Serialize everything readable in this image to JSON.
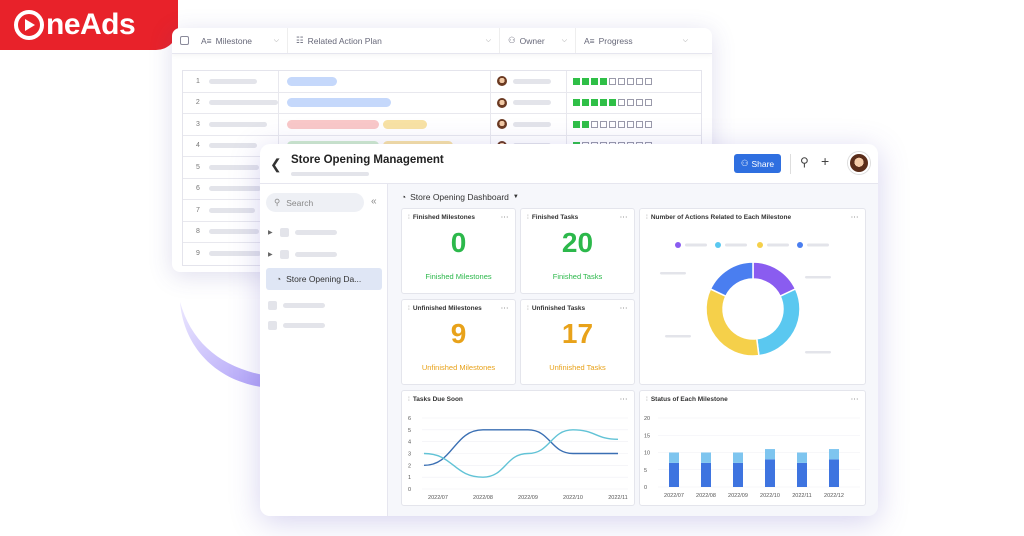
{
  "brand": {
    "logo_text": "neAds"
  },
  "bg_table": {
    "columns": [
      "Milestone",
      "Related Action Plan",
      "Owner",
      "Progress"
    ],
    "row_numbers": [
      "1",
      "2",
      "3",
      "4",
      "5",
      "6",
      "7",
      "8",
      "9"
    ],
    "progress_filled": [
      4,
      5,
      2,
      1
    ]
  },
  "main": {
    "title": "Store Opening Management",
    "share_label": "Share",
    "sidebar": {
      "search_placeholder": "Search",
      "active_item": "Store Opening Da..."
    },
    "dashboard_title": "Store Opening Dashboard",
    "widgets": {
      "finished_milestones": {
        "title": "Finished Milestones",
        "value": "0",
        "label": "Finished Milestones"
      },
      "finished_tasks": {
        "title": "Finished Tasks",
        "value": "20",
        "label": "Finished Tasks"
      },
      "unfinished_milestones": {
        "title": "Unfinished Milestones",
        "value": "9",
        "label": "Unfinished Milestones"
      },
      "unfinished_tasks": {
        "title": "Unfinished Tasks",
        "value": "17",
        "label": "Unfinished Tasks"
      },
      "actions_chart": {
        "title": "Number of Actions Related to Each Milestone"
      },
      "tasks_due": {
        "title": "Tasks Due Soon"
      },
      "milestone_status": {
        "title": "Status of Each Milestone"
      }
    }
  },
  "colors": {
    "accent": "#2f6fe0",
    "green": "#2cb84b",
    "orange": "#e8a21a",
    "purple": "#8a5cf0",
    "blue": "#4a7ef0",
    "yellow": "#f5d04a",
    "cyan": "#5ac8f0"
  },
  "chart_data": [
    {
      "type": "pie",
      "title": "Number of Actions Related to Each Milestone",
      "slices": [
        {
          "color": "#8a5cf0",
          "value": 18
        },
        {
          "color": "#5ac8f0",
          "value": 30
        },
        {
          "color": "#f5d04a",
          "value": 34
        },
        {
          "color": "#4a7ef0",
          "value": 18
        }
      ]
    },
    {
      "type": "line",
      "title": "Tasks Due Soon",
      "categories": [
        "2022/07",
        "2022/08",
        "2022/09",
        "2022/10",
        "2022/11"
      ],
      "yticks": [
        "0",
        "1",
        "2",
        "3",
        "4",
        "5",
        "6"
      ],
      "ylim": [
        0,
        6
      ],
      "series": [
        {
          "values": [
            2,
            5,
            5,
            3,
            3
          ]
        },
        {
          "values": [
            3,
            1,
            3,
            5,
            4.2
          ]
        }
      ]
    },
    {
      "type": "bar",
      "title": "Status of Each Milestone",
      "categories": [
        "2022/07",
        "2022/08",
        "2022/09",
        "2022/10",
        "2022/11",
        "2022/12"
      ],
      "yticks": [
        "0",
        "5",
        "10",
        "15",
        "20"
      ],
      "ylim": [
        0,
        20
      ],
      "series": [
        {
          "values": [
            7,
            7,
            7,
            8,
            7,
            8
          ]
        },
        {
          "values": [
            3,
            3,
            3,
            3,
            3,
            3
          ]
        }
      ]
    }
  ]
}
